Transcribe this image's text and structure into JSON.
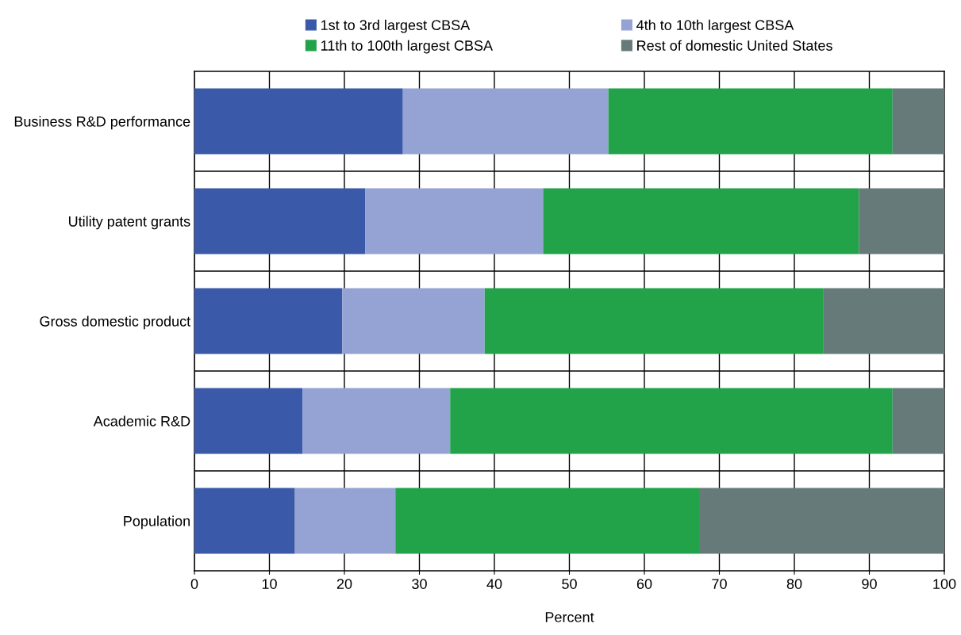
{
  "chart_data": {
    "type": "bar",
    "orientation": "horizontal",
    "stacked": true,
    "xlabel": "Percent",
    "categories": [
      "Business R&D performance",
      "Utility patent grants",
      "Gross domestic product",
      "Academic R&D",
      "Population"
    ],
    "series": [
      {
        "name": "1st to 3rd largest CBSA",
        "color": "#3a59a8",
        "values": [
          27.8,
          22.8,
          19.7,
          14.4,
          13.4
        ]
      },
      {
        "name": "4th to 10th largest CBSA",
        "color": "#94a3d3",
        "values": [
          27.4,
          23.7,
          19.0,
          19.7,
          13.4
        ]
      },
      {
        "name": "11th to 100th largest CBSA",
        "color": "#22a34a",
        "values": [
          37.9,
          42.1,
          45.2,
          59.0,
          40.5
        ]
      },
      {
        "name": "Rest of domestic United States",
        "color": "#667a7a",
        "values": [
          6.9,
          11.4,
          16.1,
          6.9,
          32.7
        ]
      }
    ],
    "xlim": [
      0,
      100
    ],
    "xticks": [
      0,
      10,
      20,
      30,
      40,
      50,
      60,
      70,
      80,
      90,
      100
    ],
    "grid": true,
    "legend": "top"
  }
}
